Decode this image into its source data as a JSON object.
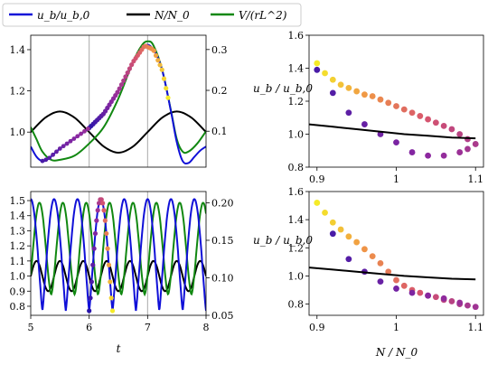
{
  "legend": [
    {
      "label": "u_b/u_b,0",
      "color": "#1010d8"
    },
    {
      "label": "N/N_0",
      "color": "#000000"
    },
    {
      "label": "V/(rL^2)",
      "color": "#118811"
    }
  ],
  "chart_data": [
    {
      "panel": "top-left",
      "type": "line",
      "xlim": [
        5,
        8
      ],
      "ylim": [
        0.83,
        1.47
      ],
      "y2lim": [
        0.012,
        0.335
      ],
      "yticks": [
        1.0,
        1.2,
        1.4
      ],
      "y2ticks": [
        0.1,
        0.2,
        0.3
      ],
      "vlines": [
        6,
        7
      ],
      "series": [
        {
          "name": "u_b/u_b,0",
          "color": "#1010d8",
          "x": [
            5.0,
            5.1,
            5.2,
            5.3,
            5.5,
            5.75,
            6.0,
            6.25,
            6.5,
            6.75,
            6.95,
            7.1,
            7.25,
            7.4,
            7.5,
            7.6,
            7.7,
            7.8,
            7.9,
            8.0
          ],
          "y": [
            0.93,
            0.88,
            0.86,
            0.87,
            0.92,
            0.97,
            1.02,
            1.09,
            1.2,
            1.34,
            1.42,
            1.4,
            1.3,
            1.1,
            0.95,
            0.86,
            0.85,
            0.88,
            0.91,
            0.93
          ]
        },
        {
          "name": "N/N_0",
          "color": "#000000",
          "x": [
            5.0,
            5.25,
            5.5,
            5.75,
            6.0,
            6.25,
            6.5,
            6.75,
            7.0,
            7.25,
            7.5,
            7.75,
            8.0
          ],
          "y": [
            1.0,
            1.07,
            1.1,
            1.07,
            1.0,
            0.93,
            0.9,
            0.93,
            1.0,
            1.07,
            1.1,
            1.07,
            1.0
          ]
        },
        {
          "name": "V/(rL^2)",
          "color": "#118811",
          "x": [
            5.0,
            5.1,
            5.2,
            5.35,
            5.5,
            5.75,
            6.0,
            6.25,
            6.5,
            6.75,
            6.9,
            7.0,
            7.1,
            7.25,
            7.4,
            7.5,
            7.6,
            7.7,
            7.85,
            8.0
          ],
          "y2": [
            0.11,
            0.08,
            0.05,
            0.03,
            0.03,
            0.04,
            0.07,
            0.11,
            0.18,
            0.27,
            0.31,
            0.32,
            0.31,
            0.25,
            0.15,
            0.08,
            0.05,
            0.05,
            0.07,
            0.1
          ]
        }
      ]
    },
    {
      "panel": "bottom-left",
      "type": "line",
      "xlim": [
        5,
        8
      ],
      "ylim": [
        0.74,
        1.56
      ],
      "y2lim": [
        0.05,
        0.215
      ],
      "xticks": [
        5,
        6,
        7,
        8
      ],
      "yticks": [
        0.8,
        0.9,
        1.0,
        1.1,
        1.2,
        1.3,
        1.4,
        1.5
      ],
      "y2ticks": [
        0.05,
        0.1,
        0.15,
        0.2
      ],
      "xlabel": "t",
      "vlines": [
        6,
        7
      ],
      "series": [
        {
          "name": "u_b/u_b,0",
          "color": "#1010d8",
          "kind": "oscillation",
          "period": 0.4,
          "t0": 5.2,
          "min": 0.77,
          "max": 1.51
        },
        {
          "name": "N/N_0",
          "color": "#000000",
          "kind": "sine",
          "period": 0.4,
          "t0": 5.0,
          "mid": 1.0,
          "amp": 0.1
        },
        {
          "name": "V/(rL^2)",
          "color": "#118811",
          "kind": "oscillation2",
          "period": 0.4,
          "t0": 5.35,
          "min": 0.078,
          "max": 0.2
        }
      ]
    },
    {
      "panel": "top-right",
      "type": "scatter",
      "xlim": [
        0.89,
        1.11
      ],
      "ylim": [
        0.8,
        1.6
      ],
      "xticks": [
        0.9,
        1.0,
        1.1
      ],
      "yticks": [
        0.8,
        1.0,
        1.2,
        1.4,
        1.6
      ],
      "ylabel": "u_b / u_b,0",
      "curve": {
        "x": [
          0.89,
          0.92,
          0.95,
          0.98,
          1.01,
          1.04,
          1.07,
          1.1
        ],
        "y": [
          1.06,
          1.045,
          1.03,
          1.015,
          1.0,
          0.99,
          0.98,
          0.975
        ]
      },
      "points": {
        "x": [
          0.9,
          0.91,
          0.92,
          0.93,
          0.94,
          0.95,
          0.96,
          0.97,
          0.98,
          0.99,
          1.0,
          1.01,
          1.02,
          1.03,
          1.04,
          1.05,
          1.06,
          1.07,
          1.08,
          1.09,
          1.1,
          1.09,
          1.08,
          1.06,
          1.04,
          1.02,
          1.0,
          0.98,
          0.96,
          0.94,
          0.92,
          0.9
        ],
        "y": [
          1.43,
          1.37,
          1.33,
          1.3,
          1.28,
          1.26,
          1.24,
          1.23,
          1.21,
          1.19,
          1.17,
          1.15,
          1.13,
          1.11,
          1.09,
          1.07,
          1.05,
          1.03,
          1.0,
          0.97,
          0.94,
          0.91,
          0.89,
          0.87,
          0.87,
          0.89,
          0.95,
          1.0,
          1.06,
          1.13,
          1.25,
          1.39
        ]
      }
    },
    {
      "panel": "bottom-right",
      "type": "scatter",
      "xlim": [
        0.89,
        1.11
      ],
      "ylim": [
        0.72,
        1.6
      ],
      "xticks": [
        0.9,
        1.0,
        1.1
      ],
      "yticks": [
        0.8,
        1.0,
        1.2,
        1.4,
        1.6
      ],
      "ylabel": "u_b / u_b,0",
      "xlabel": "N / N_0",
      "curve": {
        "x": [
          0.89,
          0.92,
          0.95,
          0.98,
          1.01,
          1.04,
          1.07,
          1.1
        ],
        "y": [
          1.06,
          1.045,
          1.03,
          1.015,
          1.0,
          0.99,
          0.98,
          0.975
        ]
      },
      "points": {
        "x": [
          0.9,
          0.91,
          0.92,
          0.93,
          0.94,
          0.95,
          0.96,
          0.97,
          0.98,
          0.99,
          1.0,
          1.01,
          1.02,
          1.03,
          1.04,
          1.05,
          1.06,
          1.07,
          1.08,
          1.09,
          1.1,
          1.08,
          1.06,
          1.04,
          1.02,
          1.0,
          0.98,
          0.96,
          0.94,
          0.92
        ],
        "y": [
          1.52,
          1.45,
          1.38,
          1.33,
          1.28,
          1.24,
          1.19,
          1.14,
          1.09,
          1.03,
          0.97,
          0.93,
          0.9,
          0.88,
          0.86,
          0.85,
          0.83,
          0.82,
          0.8,
          0.79,
          0.78,
          0.81,
          0.84,
          0.86,
          0.88,
          0.91,
          0.96,
          1.03,
          1.12,
          1.3
        ]
      }
    }
  ]
}
